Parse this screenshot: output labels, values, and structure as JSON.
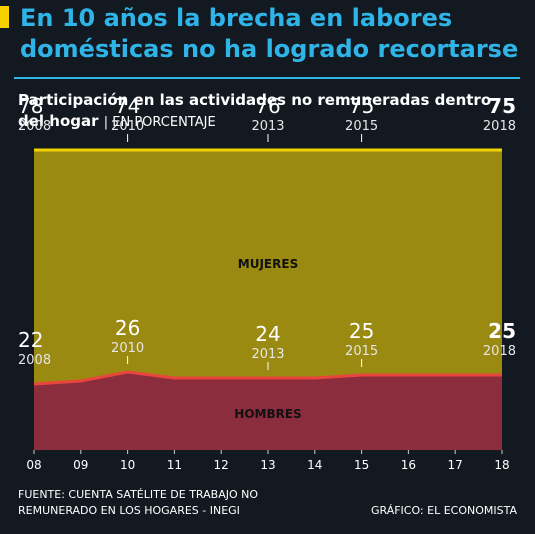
{
  "header": {
    "title": "En 10 años la brecha en labores domésticas no ha logrado recortarse",
    "subtitle_main": "Participación en las actividades no remuneradas dentro del hogar",
    "subtitle_unit": "| EN PORCENTAJE",
    "accent_color": "#2fb4e8",
    "marker_color": "#f5d100"
  },
  "chart_data": {
    "type": "area",
    "stacked": true,
    "x": [
      "08",
      "09",
      "10",
      "11",
      "12",
      "13",
      "14",
      "15",
      "16",
      "17",
      "18"
    ],
    "ylim": [
      0,
      100
    ],
    "series": [
      {
        "name": "HOMBRES",
        "values": [
          22,
          23,
          26,
          24,
          24,
          24,
          24,
          25,
          25,
          25,
          25
        ],
        "fill": "#8b2d3c",
        "line": "#e8463c"
      },
      {
        "name": "MUJERES",
        "values": [
          78,
          77,
          74,
          76,
          76,
          76,
          76,
          75,
          75,
          75,
          75
        ],
        "fill": "#9a8a12",
        "line": "#f2d200"
      }
    ],
    "annotations": {
      "mujeres": [
        {
          "index": 0,
          "value": "78",
          "year": "2008",
          "bold": false
        },
        {
          "index": 2,
          "value": "74",
          "year": "2010",
          "bold": false
        },
        {
          "index": 5,
          "value": "76",
          "year": "2013",
          "bold": false
        },
        {
          "index": 7,
          "value": "75",
          "year": "2015",
          "bold": false
        },
        {
          "index": 10,
          "value": "75",
          "year": "2018",
          "bold": true
        }
      ],
      "hombres": [
        {
          "index": 0,
          "value": "22",
          "year": "2008",
          "bold": false
        },
        {
          "index": 2,
          "value": "26",
          "year": "2010",
          "bold": false
        },
        {
          "index": 5,
          "value": "24",
          "year": "2013",
          "bold": false
        },
        {
          "index": 7,
          "value": "25",
          "year": "2015",
          "bold": false
        },
        {
          "index": 10,
          "value": "25",
          "year": "2018",
          "bold": true
        }
      ]
    }
  },
  "footer": {
    "source_line1": "FUENTE: CUENTA SATÉLITE DE TRABAJO NO",
    "source_line2": "REMUNERADO EN LOS HOGARES - INEGI",
    "credit": "GRÁFICO: EL ECONOMISTA"
  }
}
